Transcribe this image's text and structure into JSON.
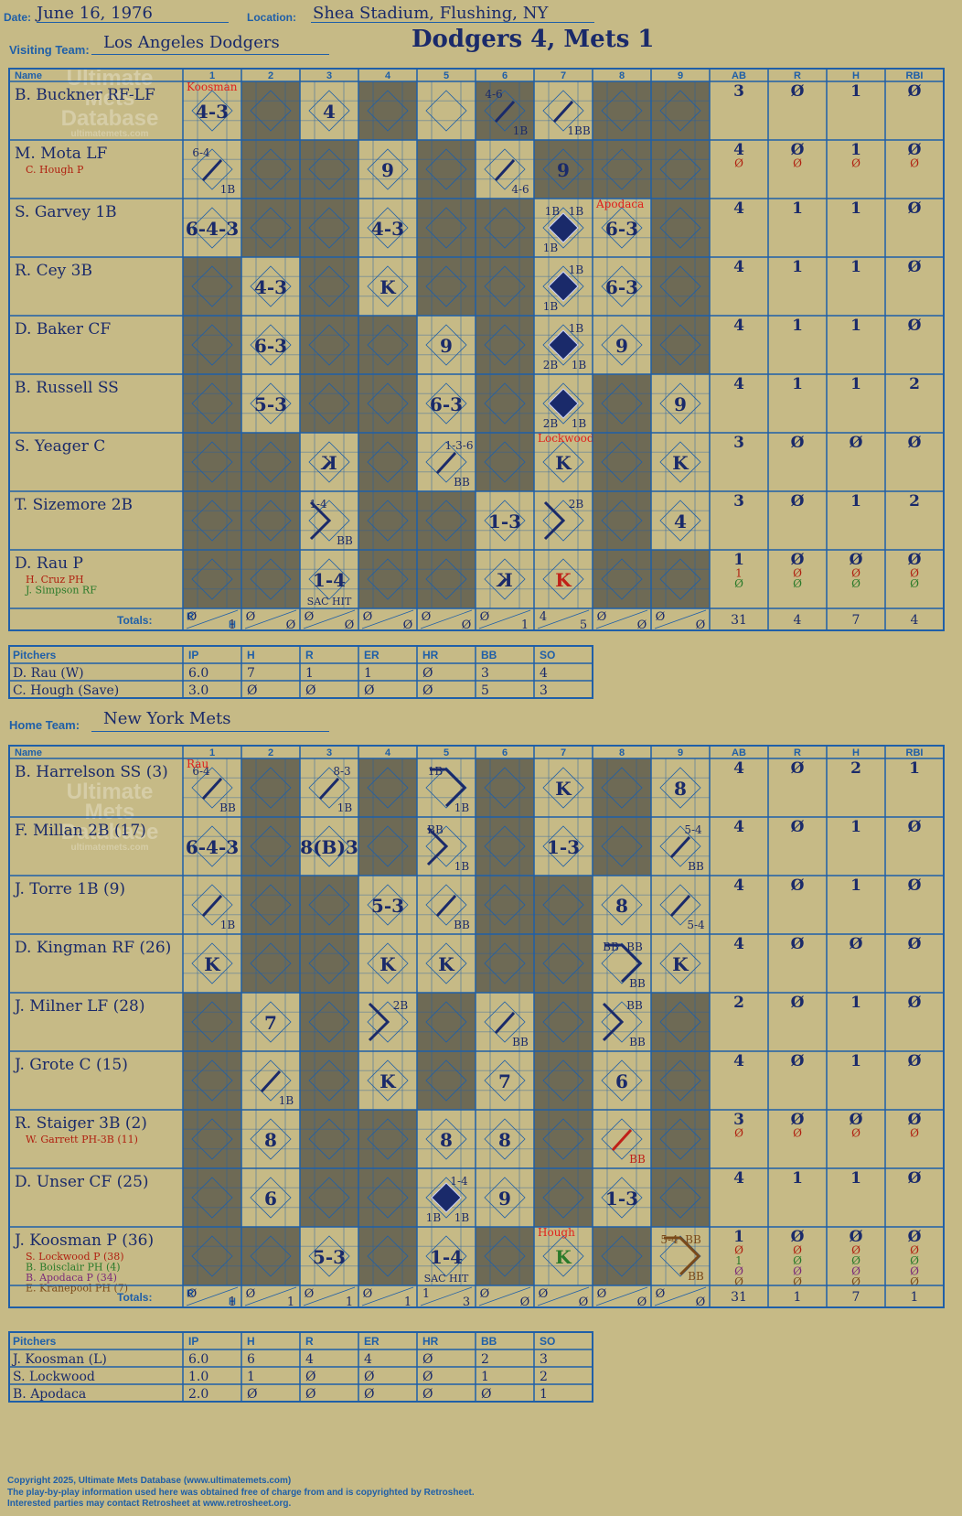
{
  "header": {
    "date_label": "Date:",
    "date": "June 16, 1976",
    "location_label": "Location:",
    "location": "Shea Stadium, Flushing, NY",
    "visiting_label": "Visiting Team:",
    "visiting_team": "Los Angeles Dodgers",
    "home_label": "Home Team:",
    "home_team": "New York Mets",
    "result": "Dodgers 4, Mets 1"
  },
  "watermark": [
    "Ultimate",
    "Mets",
    "Database",
    "ultimatemets.com"
  ],
  "col_headers": {
    "name": "Name",
    "innings": [
      "1",
      "2",
      "3",
      "4",
      "5",
      "6",
      "7",
      "8",
      "9"
    ],
    "stats": [
      "AB",
      "R",
      "H",
      "RBI"
    ]
  },
  "totals_label": "Totals:",
  "rh_labels": [
    "R",
    "H"
  ],
  "pitcher_headers": [
    "Pitchers",
    "IP",
    "H",
    "R",
    "ER",
    "HR",
    "BB",
    "SO"
  ],
  "visitors": {
    "batters": [
      {
        "name": "B. Buckner RF-LF",
        "subs": [],
        "stats": [
          [
            "3",
            "Ø",
            "1",
            "Ø"
          ]
        ],
        "shade": [
          2,
          4,
          6,
          8,
          9
        ],
        "cells": {
          "1": {
            "t": "4-3"
          },
          "3": {
            "t": "4"
          },
          "6": {
            "tl": "4-6",
            "br": "1B",
            "path": "h"
          },
          "7": {
            "br": "1BB",
            "path": "h"
          }
        },
        "marks": [
          {
            "inn": 1,
            "text": "Koosman",
            "color": "#e0201c"
          }
        ]
      },
      {
        "name": "M. Mota LF",
        "subs": [
          {
            "name": "C. Hough P",
            "color": "#b02010"
          }
        ],
        "stats": [
          [
            "4",
            "Ø",
            "1",
            "Ø"
          ],
          [
            "Ø",
            "Ø",
            "Ø",
            "Ø"
          ]
        ],
        "shade": [
          2,
          3,
          5,
          7,
          8,
          9
        ],
        "cells": {
          "1": {
            "tl": "6-4",
            "br": "1B",
            "path": "h"
          },
          "4": {
            "t": "9"
          },
          "6": {
            "br": "4-6",
            "path": "h"
          },
          "7": {
            "t": "9"
          }
        }
      },
      {
        "name": "S. Garvey 1B",
        "subs": [],
        "stats": [
          [
            "4",
            "1",
            "1",
            "Ø"
          ]
        ],
        "shade": [
          2,
          3,
          5,
          6,
          9
        ],
        "cells": {
          "1": {
            "t": "6-4-3"
          },
          "4": {
            "t": "4-3"
          },
          "7": {
            "run": true,
            "tl": "1B",
            "tr": "1B",
            "bl": "1B"
          },
          "8": {
            "t": "6-3"
          }
        },
        "marks": [
          {
            "inn": 8,
            "text": "Apodaca",
            "color": "#e0201c"
          }
        ]
      },
      {
        "name": "R. Cey 3B",
        "subs": [],
        "stats": [
          [
            "4",
            "1",
            "1",
            "Ø"
          ]
        ],
        "shade": [
          1,
          3,
          5,
          6,
          9
        ],
        "cells": {
          "2": {
            "t": "4-3"
          },
          "4": {
            "t": "K"
          },
          "7": {
            "run": true,
            "tr": "1B",
            "bl": "1B"
          },
          "8": {
            "t": "6-3"
          }
        }
      },
      {
        "name": "D. Baker CF",
        "subs": [],
        "stats": [
          [
            "4",
            "1",
            "1",
            "Ø"
          ]
        ],
        "shade": [
          1,
          3,
          4,
          6,
          9
        ],
        "cells": {
          "2": {
            "t": "6-3"
          },
          "5": {
            "t": "9"
          },
          "7": {
            "run": true,
            "tr": "1B",
            "bl": "2B",
            "br": "1B"
          },
          "8": {
            "t": "9"
          }
        }
      },
      {
        "name": "B. Russell SS",
        "subs": [],
        "stats": [
          [
            "4",
            "1",
            "1",
            "2"
          ]
        ],
        "shade": [
          1,
          3,
          4,
          6,
          8
        ],
        "cells": {
          "2": {
            "t": "5-3"
          },
          "5": {
            "t": "6-3"
          },
          "7": {
            "run": true,
            "bl": "2B",
            "br": "1B"
          },
          "9": {
            "t": "9"
          }
        }
      },
      {
        "name": "S. Yeager C",
        "subs": [],
        "stats": [
          [
            "3",
            "Ø",
            "Ø",
            "Ø"
          ]
        ],
        "shade": [
          1,
          2,
          4,
          6,
          8
        ],
        "cells": {
          "3": {
            "t": "K",
            "rev": true
          },
          "5": {
            "tr": "1-3-6",
            "br": "BB",
            "path": "h"
          },
          "7": {
            "t": "K"
          },
          "9": {
            "t": "K"
          }
        },
        "marks": [
          {
            "inn": 7,
            "text": "Lockwood",
            "color": "#e0201c"
          }
        ]
      },
      {
        "name": "T. Sizemore 2B",
        "subs": [],
        "stats": [
          [
            "3",
            "Ø",
            "1",
            "2"
          ]
        ],
        "shade": [
          1,
          2,
          4,
          5,
          8
        ],
        "cells": {
          "3": {
            "tl": "1-4",
            "br": "BB",
            "path": "h2"
          },
          "6": {
            "t": "1-3"
          },
          "7": {
            "tr": "2B",
            "path": "h2"
          },
          "9": {
            "t": "4"
          }
        }
      },
      {
        "name": "D. Rau P",
        "subs": [
          {
            "name": "H. Cruz PH",
            "color": "#b02010"
          },
          {
            "name": "J. Simpson RF",
            "color": "#2a7a2a"
          }
        ],
        "stats": [
          [
            "1",
            "Ø",
            "Ø",
            "Ø"
          ],
          [
            "1",
            "Ø",
            "Ø",
            "Ø"
          ],
          [
            "Ø",
            "Ø",
            "Ø",
            "Ø"
          ]
        ],
        "shade": [
          1,
          2,
          4,
          5,
          8,
          9
        ],
        "cells": {
          "3": {
            "t": "1-4",
            "bot": "SAC HIT"
          },
          "6": {
            "t": "K",
            "rev": true
          },
          "7": {
            "t": "K",
            "color": "#c02018"
          }
        }
      }
    ],
    "inning_totals": [
      [
        "Ø",
        "1"
      ],
      [
        "Ø",
        "Ø"
      ],
      [
        "Ø",
        "Ø"
      ],
      [
        "Ø",
        "Ø"
      ],
      [
        "Ø",
        "Ø"
      ],
      [
        "Ø",
        "1"
      ],
      [
        "4",
        "5"
      ],
      [
        "Ø",
        "Ø"
      ],
      [
        "Ø",
        "Ø"
      ]
    ],
    "team_totals": [
      "31",
      "4",
      "7",
      "4"
    ],
    "pitchers": [
      {
        "name": "D. Rau (W)",
        "stats": [
          "6.0",
          "7",
          "1",
          "1",
          "Ø",
          "3",
          "4"
        ]
      },
      {
        "name": "C. Hough (Save)",
        "stats": [
          "3.0",
          "Ø",
          "Ø",
          "Ø",
          "Ø",
          "5",
          "3"
        ]
      }
    ]
  },
  "home": {
    "batters": [
      {
        "name": "B. Harrelson SS (3)",
        "subs": [],
        "stats": [
          [
            "4",
            "Ø",
            "2",
            "1"
          ]
        ],
        "shade": [
          2,
          4,
          6,
          8
        ],
        "cells": {
          "1": {
            "tl": "6-4",
            "br": "BB",
            "path": "h"
          },
          "3": {
            "tr": "8-3",
            "br": "1B",
            "path": "h"
          },
          "5": {
            "tl": "1B",
            "br": "1B",
            "path": "h3"
          },
          "7": {
            "t": "K"
          },
          "9": {
            "t": "8"
          }
        },
        "marks": [
          {
            "inn": 1,
            "text": "Rau",
            "color": "#e0201c"
          }
        ]
      },
      {
        "name": "F. Millan 2B (17)",
        "subs": [],
        "stats": [
          [
            "4",
            "Ø",
            "1",
            "Ø"
          ]
        ],
        "shade": [
          2,
          4,
          6,
          8
        ],
        "cells": {
          "1": {
            "t": "6-4-3"
          },
          "3": {
            "t": "8(B)3"
          },
          "5": {
            "tl": "BB",
            "br": "1B",
            "path": "h2"
          },
          "7": {
            "t": "1-3"
          },
          "9": {
            "tr": "5-4",
            "br": "BB",
            "path": "h"
          }
        }
      },
      {
        "name": "J. Torre 1B (9)",
        "subs": [],
        "stats": [
          [
            "4",
            "Ø",
            "1",
            "Ø"
          ]
        ],
        "shade": [
          2,
          3,
          6,
          7
        ],
        "cells": {
          "1": {
            "br": "1B",
            "path": "h"
          },
          "4": {
            "t": "5-3"
          },
          "5": {
            "br": "BB",
            "path": "h"
          },
          "8": {
            "t": "8"
          },
          "9": {
            "br": "5-4",
            "path": "h"
          }
        }
      },
      {
        "name": "D. Kingman RF (26)",
        "subs": [],
        "stats": [
          [
            "4",
            "Ø",
            "Ø",
            "Ø"
          ]
        ],
        "shade": [
          2,
          3,
          6,
          7
        ],
        "cells": {
          "1": {
            "t": "K"
          },
          "4": {
            "t": "K"
          },
          "5": {
            "t": "K"
          },
          "8": {
            "tl": "BB",
            "tr": "BB",
            "br": "BB",
            "path": "h3"
          },
          "9": {
            "t": "K"
          }
        }
      },
      {
        "name": "J. Milner LF (28)",
        "subs": [],
        "stats": [
          [
            "2",
            "Ø",
            "1",
            "Ø"
          ]
        ],
        "shade": [
          1,
          3,
          5,
          7,
          9
        ],
        "cells": {
          "2": {
            "t": "7"
          },
          "4": {
            "tr": "2B",
            "path": "h2"
          },
          "6": {
            "br": "BB",
            "path": "h"
          },
          "8": {
            "tr": "BB",
            "br": "BB",
            "path": "h2"
          }
        }
      },
      {
        "name": "J. Grote C (15)",
        "subs": [],
        "stats": [
          [
            "4",
            "Ø",
            "1",
            "Ø"
          ]
        ],
        "shade": [
          1,
          3,
          5,
          7,
          9
        ],
        "cells": {
          "2": {
            "br": "1B",
            "path": "h"
          },
          "4": {
            "t": "K"
          },
          "6": {
            "t": "7"
          },
          "8": {
            "t": "6"
          }
        }
      },
      {
        "name": "R. Staiger 3B (2)",
        "subs": [
          {
            "name": "W. Garrett PH-3B (11)",
            "color": "#b02010"
          }
        ],
        "stats": [
          [
            "3",
            "Ø",
            "Ø",
            "Ø"
          ],
          [
            "Ø",
            "Ø",
            "Ø",
            "Ø"
          ]
        ],
        "shade": [
          1,
          3,
          4,
          7,
          9
        ],
        "cells": {
          "2": {
            "t": "8"
          },
          "5": {
            "t": "8"
          },
          "6": {
            "t": "8"
          },
          "8": {
            "br": "BB",
            "path": "h",
            "color": "#c02018"
          }
        }
      },
      {
        "name": "D. Unser CF (25)",
        "subs": [],
        "stats": [
          [
            "4",
            "1",
            "1",
            "Ø"
          ]
        ],
        "shade": [
          1,
          3,
          4,
          7,
          9
        ],
        "cells": {
          "2": {
            "t": "6"
          },
          "5": {
            "run": true,
            "tr": "1-4",
            "bl": "1B",
            "br": "1B"
          },
          "6": {
            "t": "9"
          },
          "8": {
            "t": "1-3"
          }
        }
      },
      {
        "name": "J. Koosman P (36)",
        "subs": [
          {
            "name": "S. Lockwood P (38)",
            "color": "#b02010"
          },
          {
            "name": "B. Boisclair PH (4)",
            "color": "#2a7a2a"
          },
          {
            "name": "B. Apodaca P (34)",
            "color": "#7a2a7a"
          },
          {
            "name": "E. Kranepool PH (7)",
            "color": "#7a4a1a"
          }
        ],
        "stats": [
          [
            "1",
            "Ø",
            "Ø",
            "Ø"
          ],
          [
            "Ø",
            "Ø",
            "Ø",
            "Ø"
          ],
          [
            "1",
            "Ø",
            "Ø",
            "Ø"
          ],
          [
            "Ø",
            "Ø",
            "Ø",
            "Ø"
          ],
          [
            "Ø",
            "Ø",
            "Ø",
            "Ø"
          ]
        ],
        "shade": [
          1,
          2,
          4,
          6,
          8
        ],
        "cells": {
          "3": {
            "t": "5-3"
          },
          "5": {
            "t": "1-4",
            "bot": "SAC HIT"
          },
          "7": {
            "t": "K",
            "color": "#2a7a2a"
          },
          "9": {
            "tl": "5-4",
            "tr": "BB",
            "br": "BB",
            "path": "h3",
            "color": "#7a4a1a"
          }
        },
        "marks": [
          {
            "inn": 7,
            "text": "Hough",
            "color": "#e0201c"
          }
        ]
      }
    ],
    "inning_totals": [
      [
        "Ø",
        "1"
      ],
      [
        "Ø",
        "1"
      ],
      [
        "Ø",
        "1"
      ],
      [
        "Ø",
        "1"
      ],
      [
        "1",
        "3"
      ],
      [
        "Ø",
        "Ø"
      ],
      [
        "Ø",
        "Ø"
      ],
      [
        "Ø",
        "Ø"
      ],
      [
        "Ø",
        "Ø"
      ]
    ],
    "team_totals": [
      "31",
      "1",
      "7",
      "1"
    ],
    "pitchers": [
      {
        "name": "J. Koosman (L)",
        "stats": [
          "6.0",
          "6",
          "4",
          "4",
          "Ø",
          "2",
          "3"
        ]
      },
      {
        "name": "S. Lockwood",
        "stats": [
          "1.0",
          "1",
          "Ø",
          "Ø",
          "Ø",
          "1",
          "2"
        ]
      },
      {
        "name": "B. Apodaca",
        "stats": [
          "2.0",
          "Ø",
          "Ø",
          "Ø",
          "Ø",
          "Ø",
          "1"
        ]
      }
    ]
  },
  "footer": [
    "Copyright 2025, Ultimate Mets Database (www.ultimatemets.com)",
    "The play-by-play information used here was obtained free of charge from and is copyrighted by Retrosheet.",
    "Interested parties may contact Retrosheet at www.retrosheet.org."
  ],
  "colors": {
    "blue": "#1f5fa8",
    "ink": "#1a2a6a",
    "shade": "#6e6a55",
    "paper": "#c6ba86",
    "diamond": "#1a2a6a"
  }
}
